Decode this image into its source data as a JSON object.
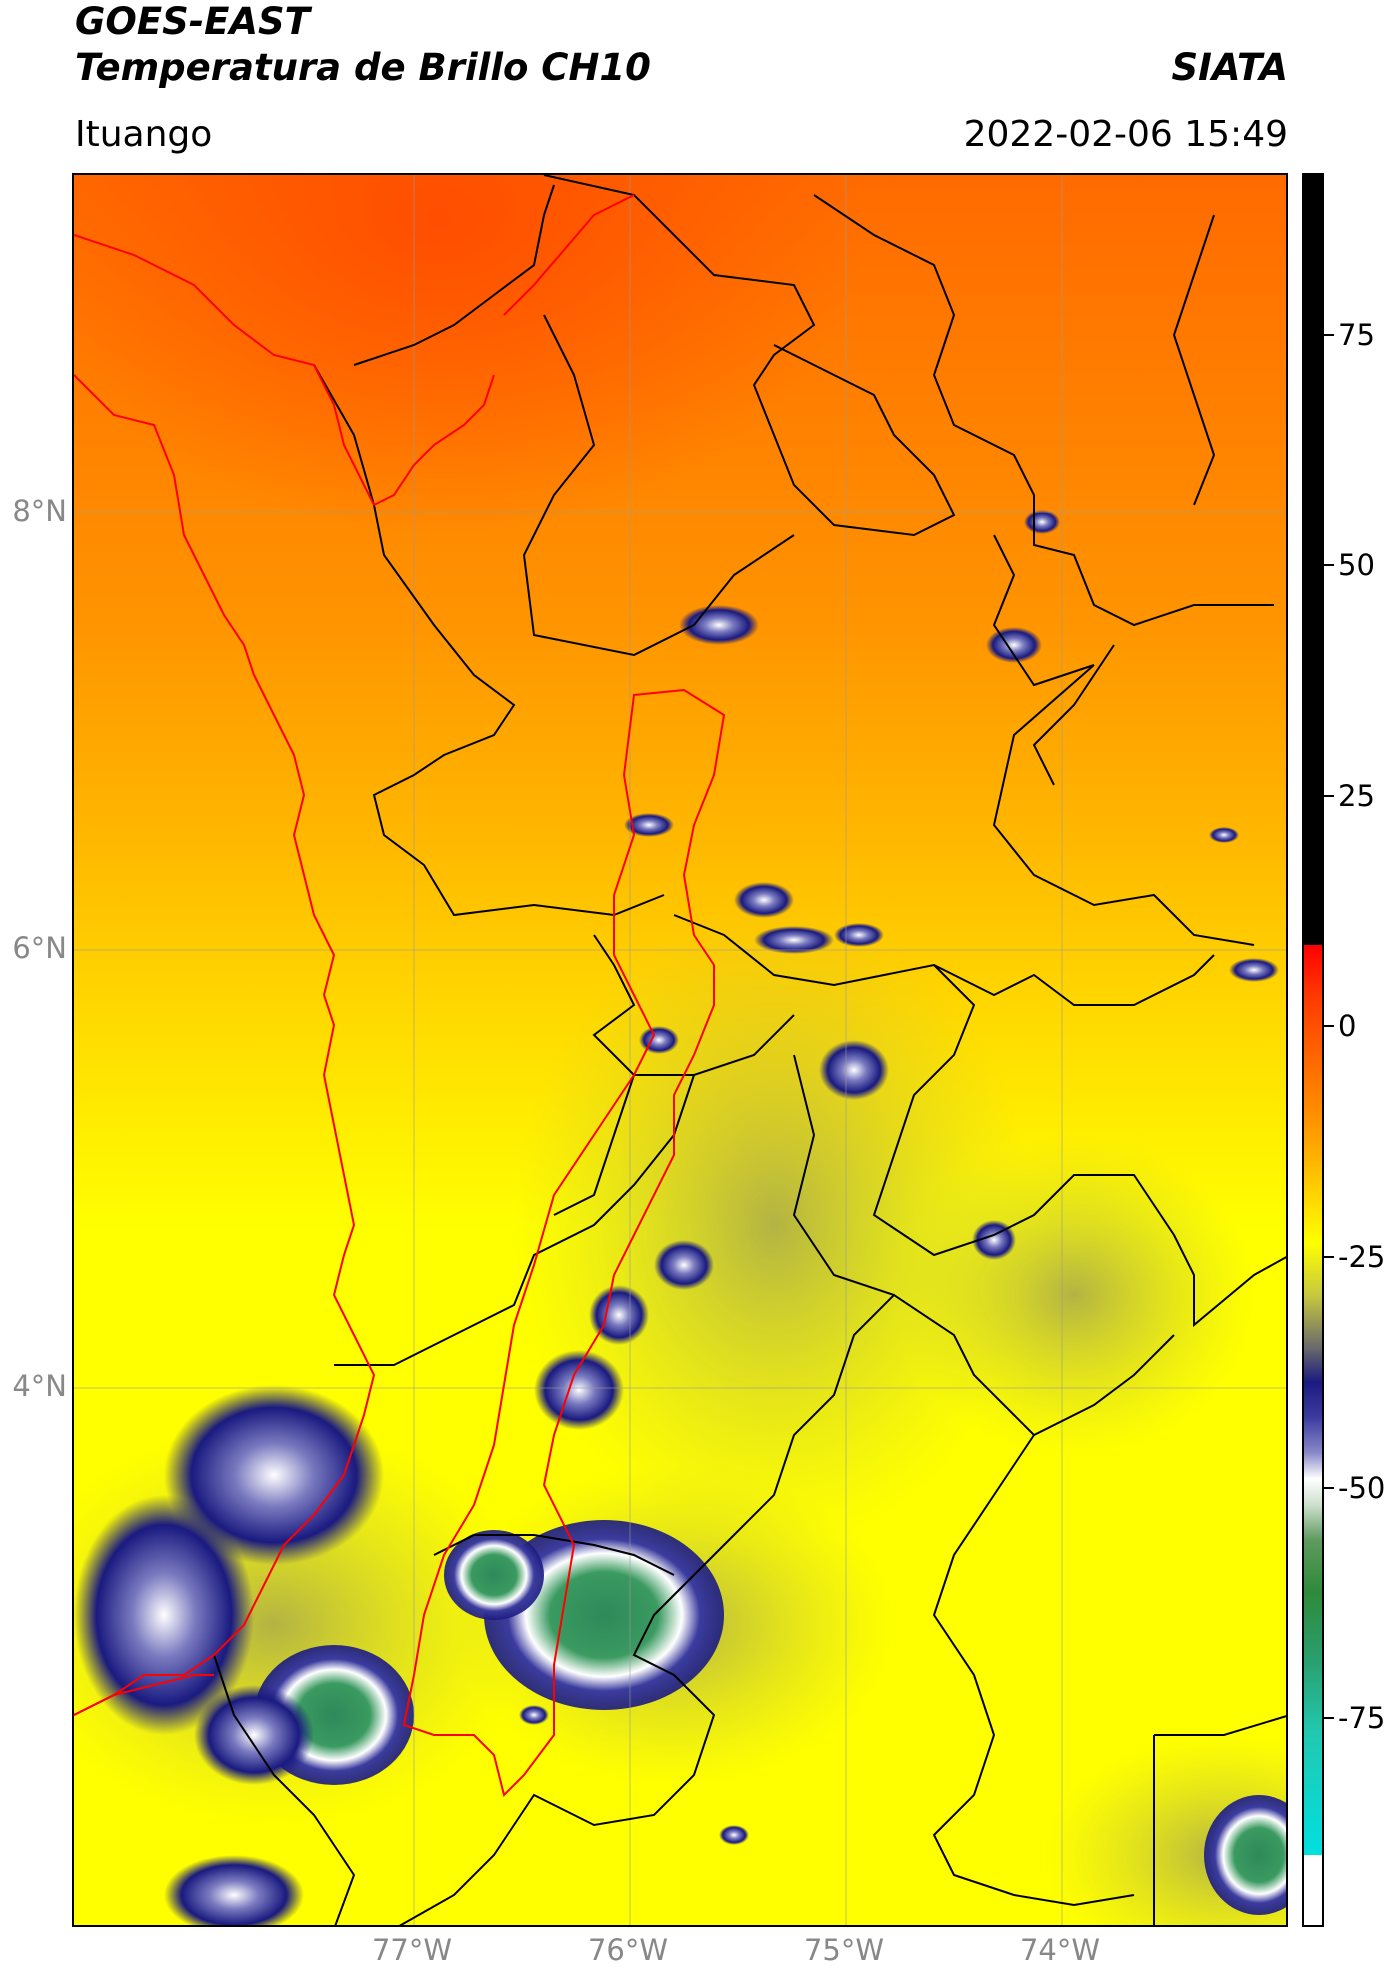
{
  "header": {
    "title_line1": "GOES-EAST",
    "title_line2": "Temperatura de Brillo CH10",
    "brand": "SIATA",
    "region": "Ituango",
    "datetime": "2022-02-06 15:49"
  },
  "map": {
    "latitude_labels": [
      "8°N",
      "6°N",
      "4°N"
    ],
    "longitude_labels": [
      "77°W",
      "76°W",
      "75°W",
      "74°W"
    ],
    "border_color_country": "#ff0000",
    "border_color_department": "#000000",
    "basin_outline_color": "#ff0000"
  },
  "colorbar": {
    "ticks": [
      "75",
      "50",
      "25",
      "0",
      "-25",
      "-50",
      "-75"
    ],
    "colors": {
      "warm": "#ff3a00",
      "mid": "#ffff00",
      "cold_blue": "#1a1a80",
      "very_cold_green": "#2e8a3a",
      "extreme_cyan": "#00e0e0",
      "out_of_range": "#000000"
    }
  }
}
